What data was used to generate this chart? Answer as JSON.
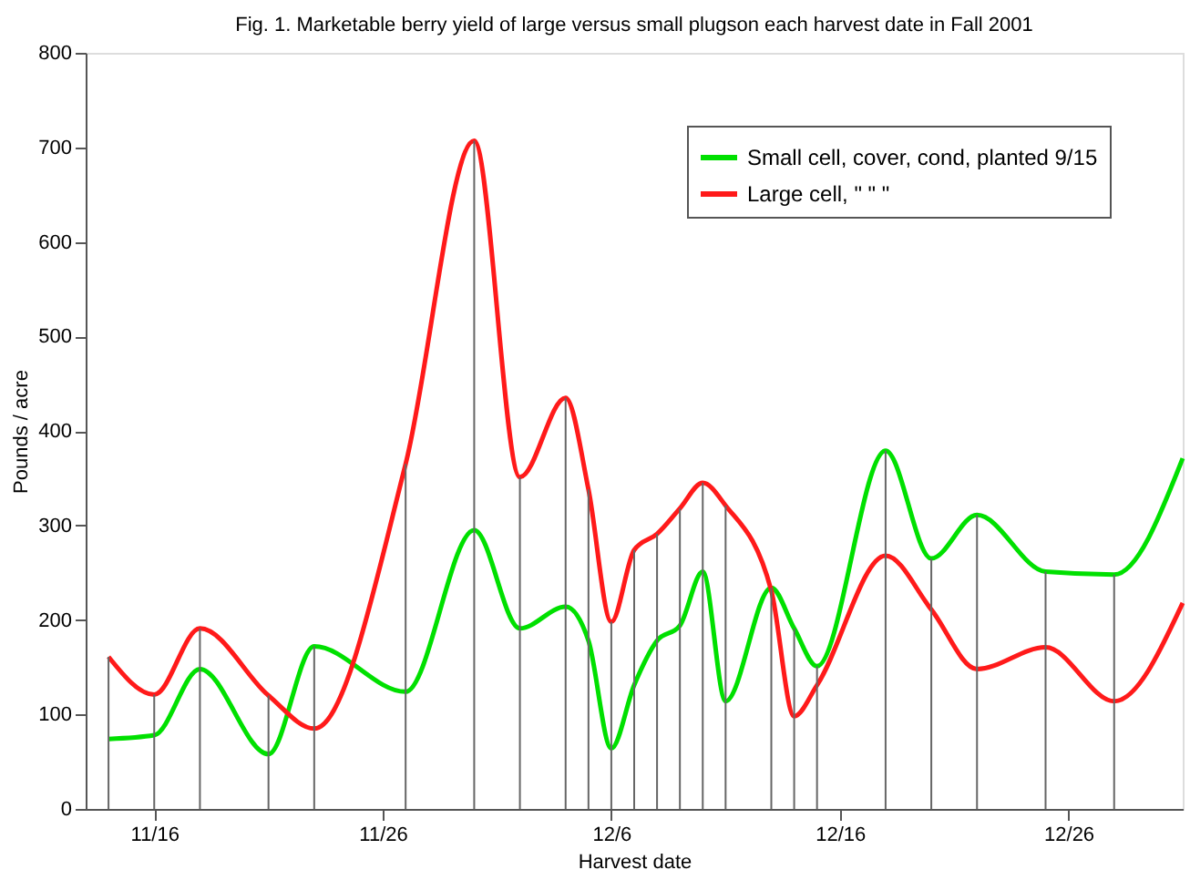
{
  "chart_data": {
    "type": "line",
    "title": "Fig. 1. Marketable berry yield of large versus small plugson each harvest date in Fall 2001",
    "xlabel": "Harvest date",
    "ylabel": "Pounds / acre",
    "x": [
      "2001-11-14",
      "2001-11-16",
      "2001-11-18",
      "2001-11-21",
      "2001-11-23",
      "2001-11-27",
      "2001-11-30",
      "2001-12-02",
      "2001-12-04",
      "2001-12-05",
      "2001-12-06",
      "2001-12-07",
      "2001-12-08",
      "2001-12-09",
      "2001-12-10",
      "2001-12-11",
      "2001-12-13",
      "2001-12-14",
      "2001-12-15",
      "2001-12-18",
      "2001-12-20",
      "2001-12-22",
      "2001-12-25",
      "2001-12-28",
      "2001-12-31"
    ],
    "series": [
      {
        "name": "Small cell, cover, cond, planted 9/15",
        "color": "#00e000",
        "values": [
          74,
          78,
          148,
          58,
          172,
          124,
          295,
          191,
          214,
          178,
          64,
          131,
          178,
          194,
          251,
          114,
          234,
          191,
          151,
          379,
          265,
          311,
          251,
          248,
          371
        ]
      },
      {
        "name": "Large cell, \"  \"  \"",
        "color": "#ff1a1a",
        "values": [
          161,
          121,
          191,
          120,
          85,
          365,
          707,
          351,
          435,
          338,
          198,
          274,
          291,
          318,
          345,
          321,
          231,
          98,
          131,
          268,
          211,
          148,
          171,
          114,
          218
        ]
      }
    ],
    "ref_lines": [
      {
        "axis": "x",
        "value": "2001-11-14"
      },
      {
        "axis": "x",
        "value": "2001-11-16"
      },
      {
        "axis": "x",
        "value": "2001-11-18"
      },
      {
        "axis": "x",
        "value": "2001-11-21"
      },
      {
        "axis": "x",
        "value": "2001-11-23"
      },
      {
        "axis": "x",
        "value": "2001-11-27"
      },
      {
        "axis": "x",
        "value": "2001-11-30"
      },
      {
        "axis": "x",
        "value": "2001-12-02"
      },
      {
        "axis": "x",
        "value": "2001-12-04"
      },
      {
        "axis": "x",
        "value": "2001-12-05"
      },
      {
        "axis": "x",
        "value": "2001-12-06"
      },
      {
        "axis": "x",
        "value": "2001-12-07"
      },
      {
        "axis": "x",
        "value": "2001-12-08"
      },
      {
        "axis": "x",
        "value": "2001-12-09"
      },
      {
        "axis": "x",
        "value": "2001-12-10"
      },
      {
        "axis": "x",
        "value": "2001-12-11"
      },
      {
        "axis": "x",
        "value": "2001-12-13"
      },
      {
        "axis": "x",
        "value": "2001-12-14"
      },
      {
        "axis": "x",
        "value": "2001-12-15"
      },
      {
        "axis": "x",
        "value": "2001-12-18"
      },
      {
        "axis": "x",
        "value": "2001-12-20"
      },
      {
        "axis": "x",
        "value": "2001-12-22"
      },
      {
        "axis": "x",
        "value": "2001-12-25"
      },
      {
        "axis": "x",
        "value": "2001-12-28"
      }
    ],
    "xlim": [
      "2001-11-13",
      "2001-12-31"
    ],
    "xticks": [
      {
        "value": "2001-11-16",
        "label": "11/16"
      },
      {
        "value": "2001-11-26",
        "label": "11/26"
      },
      {
        "value": "2001-12-06",
        "label": "12/6"
      },
      {
        "value": "2001-12-16",
        "label": "12/16"
      },
      {
        "value": "2001-12-26",
        "label": "12/26"
      }
    ],
    "ylim": [
      0,
      800
    ],
    "yticks": [
      0,
      100,
      200,
      300,
      400,
      500,
      600,
      700,
      800
    ],
    "grid": false,
    "legend": "top right",
    "marker": "none",
    "line_style": "solid"
  }
}
